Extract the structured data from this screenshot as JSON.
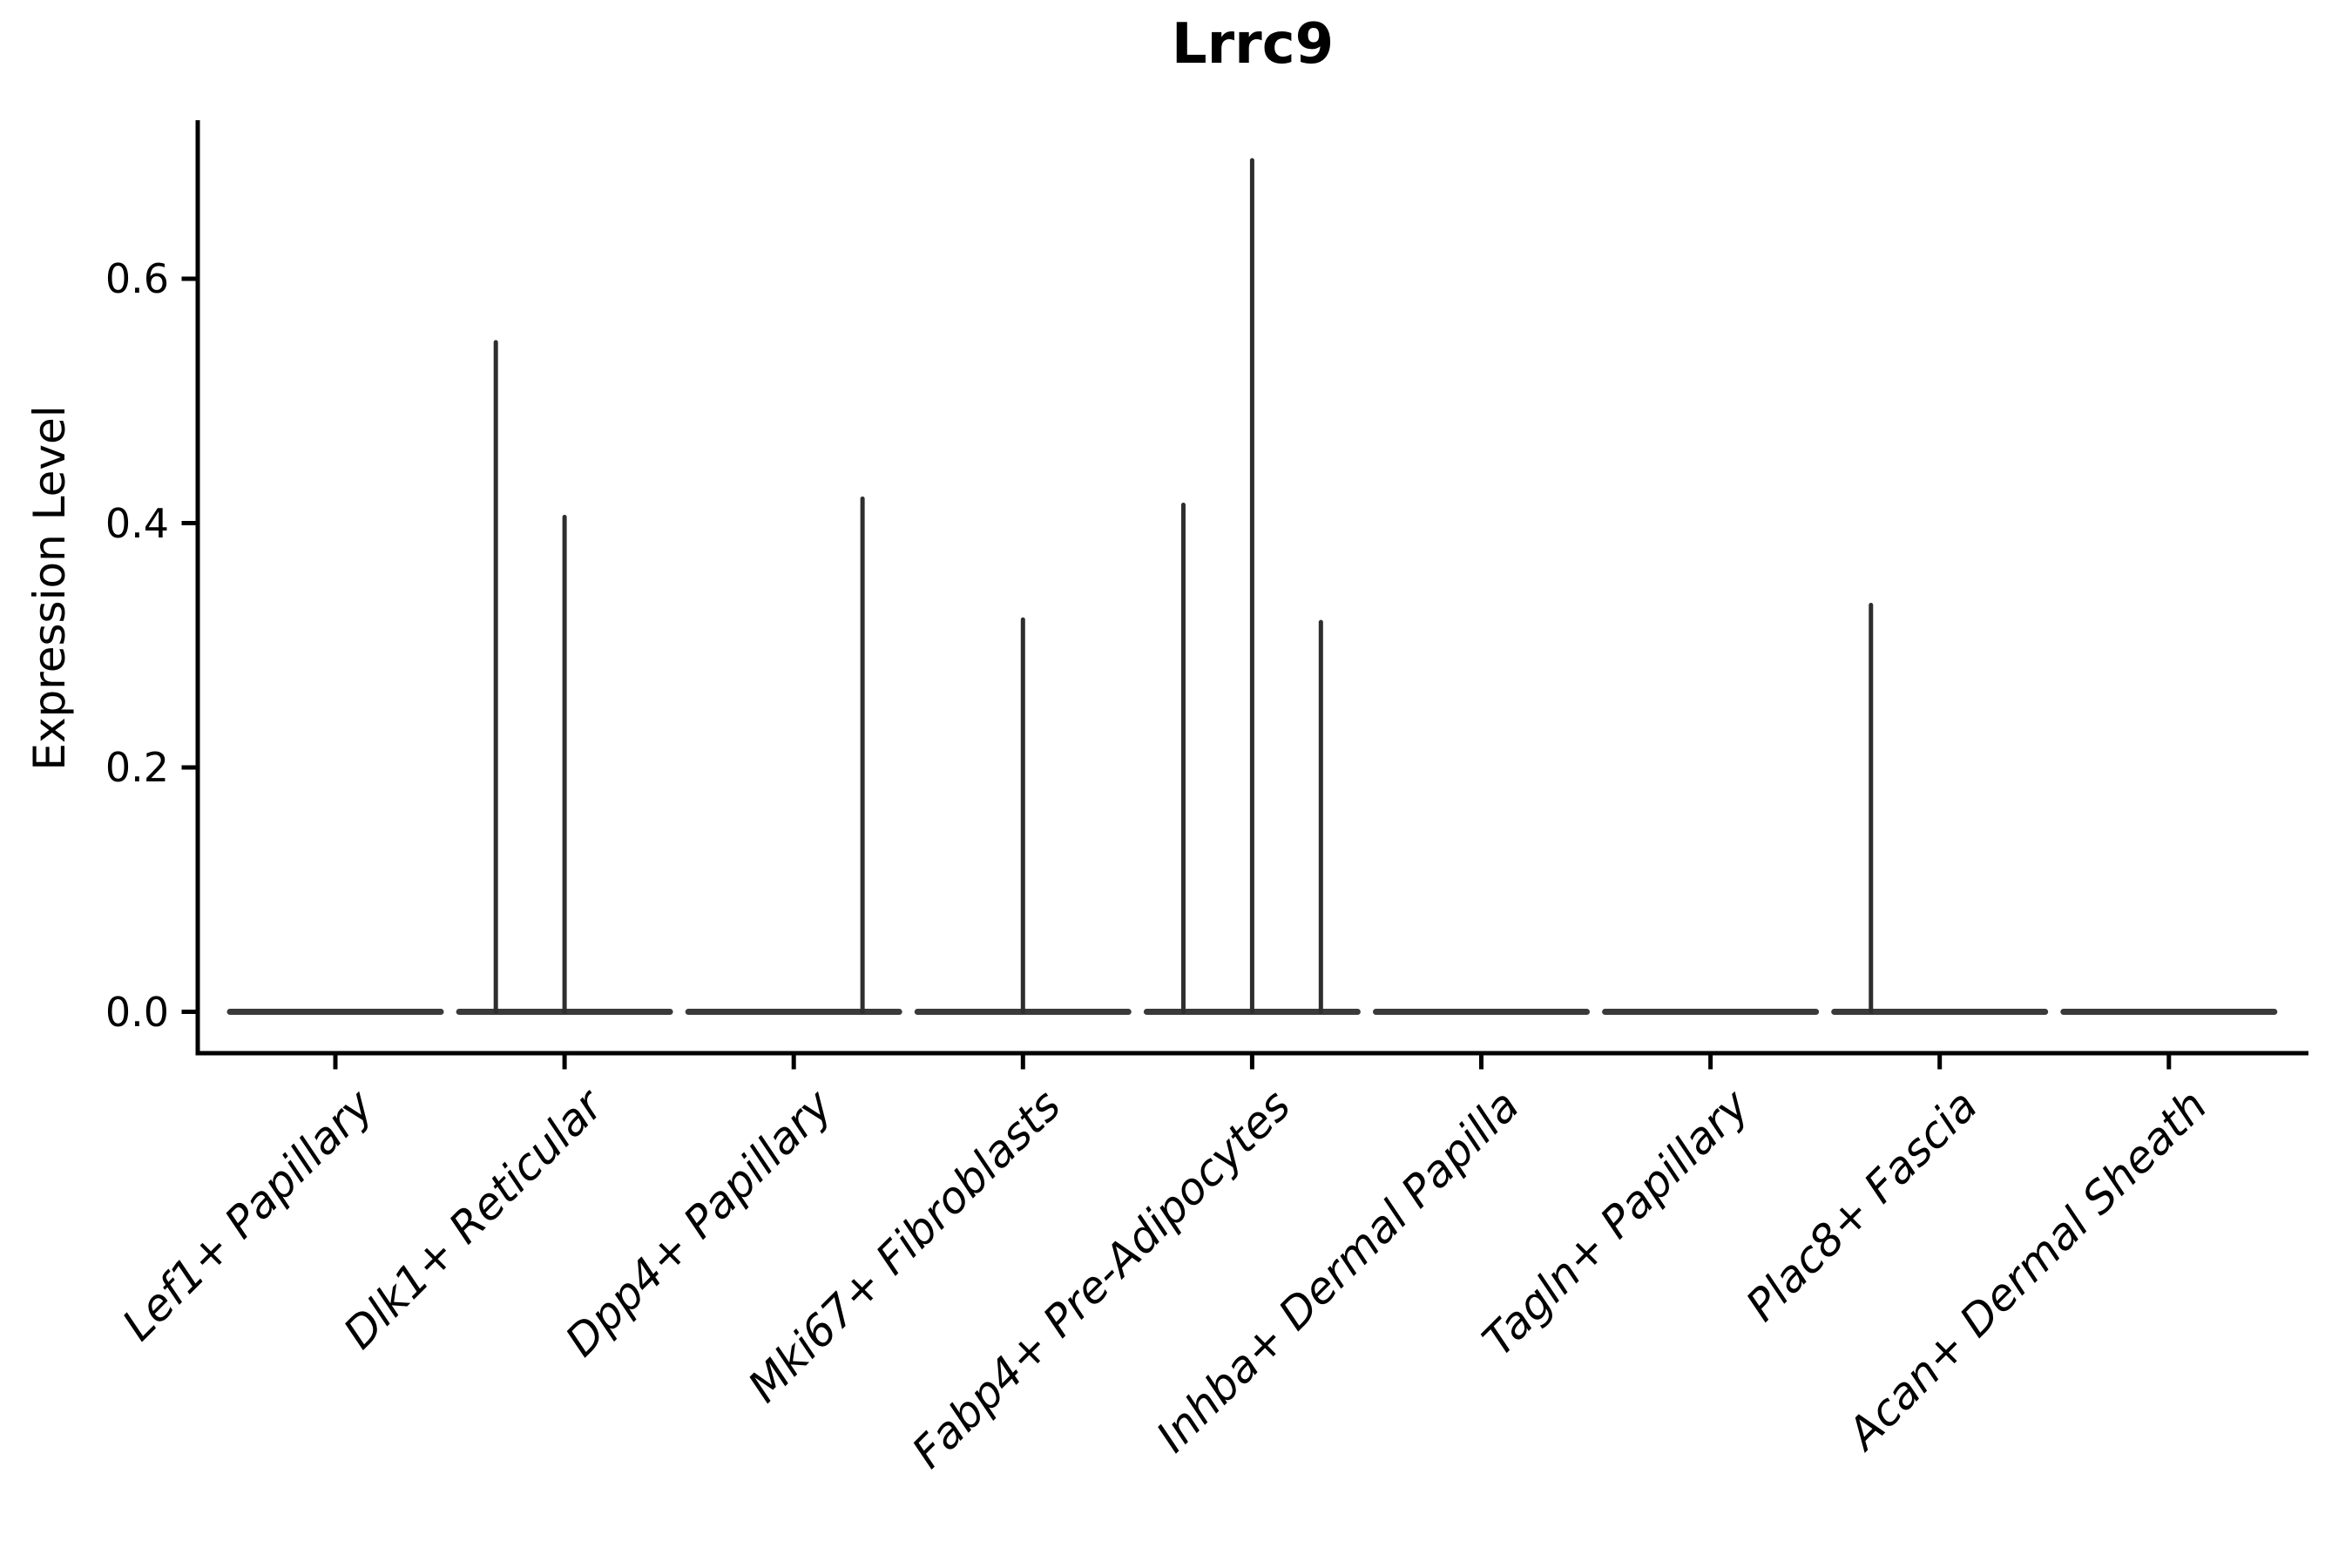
{
  "chart_data": {
    "type": "violin",
    "title": "Lrrc9",
    "ylabel": "Expression Level",
    "xlabel": "",
    "ylim": [
      -0.034,
      0.727
    ],
    "yticks": [
      0.0,
      0.2,
      0.4,
      0.6
    ],
    "ytick_labels": [
      "0.0",
      "0.2",
      "0.4",
      "0.6"
    ],
    "grid": false,
    "legend": "none",
    "categories": [
      "Lef1+ Papillary",
      "Dlk1+ Reticular",
      "Dpp4+ Papillary",
      "Mki67+ Fibroblasts",
      "Fabp4+ Pre-Adipocytes",
      "Inhba+ Dermal Papilla",
      "Tagln+ Papillary",
      "Plac8+ Fascia",
      "Acan+ Dermal Sheath"
    ],
    "series": [
      {
        "name": "Lef1+ Papillary",
        "baseline_value": 0.0,
        "spikes": []
      },
      {
        "name": "Dlk1+ Reticular",
        "baseline_value": 0.0,
        "spikes": [
          {
            "offset": -0.3,
            "peak": 0.548
          },
          {
            "offset": 0.0,
            "peak": 0.405
          }
        ]
      },
      {
        "name": "Dpp4+ Papillary",
        "baseline_value": 0.0,
        "spikes": [
          {
            "offset": 0.3,
            "peak": 0.42
          }
        ]
      },
      {
        "name": "Mki67+ Fibroblasts",
        "baseline_value": 0.0,
        "spikes": [
          {
            "offset": 0.0,
            "peak": 0.321
          }
        ]
      },
      {
        "name": "Fabp4+ Pre-Adipocytes",
        "baseline_value": 0.0,
        "spikes": [
          {
            "offset": -0.3,
            "peak": 0.415
          },
          {
            "offset": 0.0,
            "peak": 0.697
          },
          {
            "offset": 0.3,
            "peak": 0.319
          }
        ]
      },
      {
        "name": "Inhba+ Dermal Papilla",
        "baseline_value": 0.0,
        "spikes": []
      },
      {
        "name": "Tagln+ Papillary",
        "baseline_value": 0.0,
        "spikes": []
      },
      {
        "name": "Plac8+ Fascia",
        "baseline_value": 0.0,
        "spikes": [
          {
            "offset": -0.3,
            "peak": 0.333
          }
        ]
      },
      {
        "name": "Acan+ Dermal Sheath",
        "baseline_value": 0.0,
        "spikes": []
      }
    ],
    "colors": {
      "background": "#ffffff",
      "axis": "#000000",
      "text": "#000000",
      "violin_body": "#3a3a3a",
      "spike": "#2e2e2e"
    }
  }
}
